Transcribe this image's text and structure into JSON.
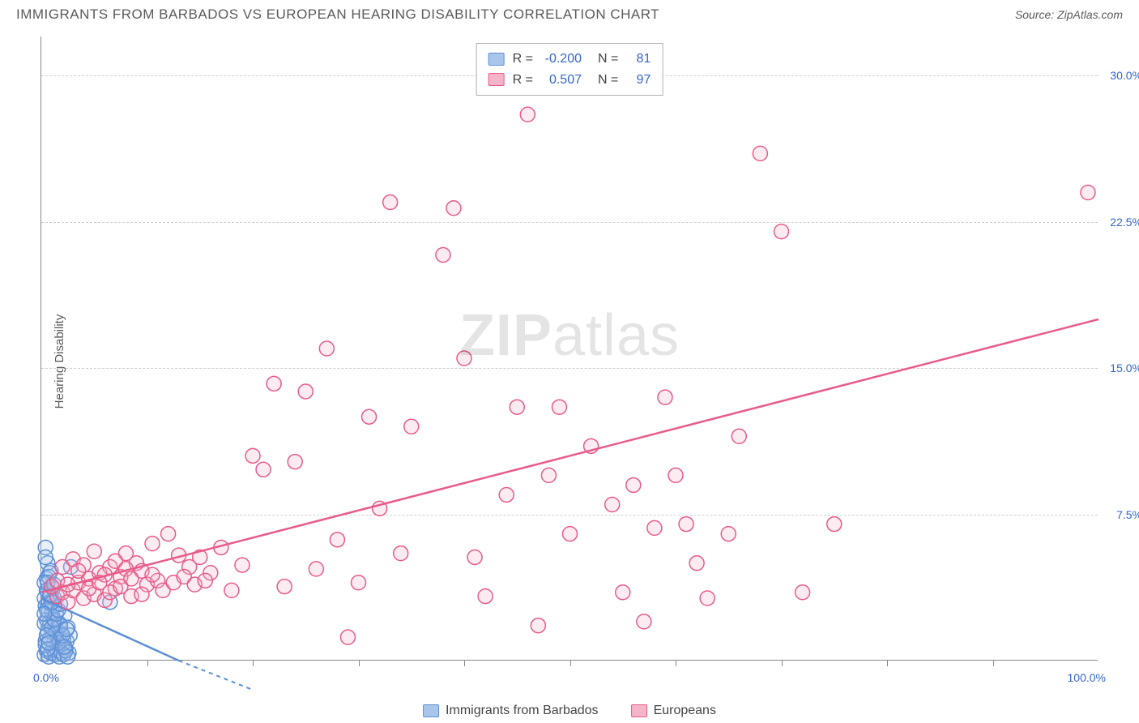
{
  "header": {
    "title": "IMMIGRANTS FROM BARBADOS VS EUROPEAN HEARING DISABILITY CORRELATION CHART",
    "source": "Source: ZipAtlas.com"
  },
  "chart": {
    "type": "scatter",
    "ylabel": "Hearing Disability",
    "xlim": [
      0,
      100
    ],
    "ylim": [
      0,
      32
    ],
    "x_axis_labels": [
      "0.0%",
      "100.0%"
    ],
    "y_ticks": [
      7.5,
      15.0,
      22.5,
      30.0
    ],
    "y_tick_labels": [
      "7.5%",
      "15.0%",
      "22.5%",
      "30.0%"
    ],
    "x_tick_positions": [
      10,
      20,
      30,
      40,
      50,
      60,
      70,
      80,
      90
    ],
    "background_color": "#ffffff",
    "grid_color": "#d0d0d0",
    "axis_color": "#888888",
    "marker_radius": 9,
    "watermark": "ZIPatlas",
    "series": [
      {
        "name": "Immigrants from Barbados",
        "color_stroke": "#5b8fd6",
        "color_fill": "#a9c5ec",
        "R": "-0.200",
        "N": "81",
        "trend": {
          "x1": 0,
          "y1": 3.2,
          "x2": 13,
          "y2": 0
        },
        "trend_dash": {
          "x1": 13,
          "y1": 0,
          "x2": 20,
          "y2": -1.5
        },
        "points": [
          [
            0.3,
            3.2
          ],
          [
            0.4,
            2.8
          ],
          [
            0.5,
            2.1
          ],
          [
            0.6,
            3.5
          ],
          [
            0.7,
            2.5
          ],
          [
            0.8,
            1.8
          ],
          [
            0.9,
            2.9
          ],
          [
            1.0,
            1.5
          ],
          [
            1.1,
            2.2
          ],
          [
            1.2,
            0.9
          ],
          [
            1.3,
            1.6
          ],
          [
            1.4,
            2.0
          ],
          [
            1.5,
            0.7
          ],
          [
            1.6,
            1.2
          ],
          [
            1.7,
            1.9
          ],
          [
            1.8,
            0.5
          ],
          [
            1.9,
            1.4
          ],
          [
            2.0,
            0.8
          ],
          [
            2.1,
            1.1
          ],
          [
            2.2,
            2.3
          ],
          [
            2.3,
            0.6
          ],
          [
            2.4,
            1.0
          ],
          [
            2.5,
            1.7
          ],
          [
            2.6,
            0.4
          ],
          [
            2.7,
            1.3
          ],
          [
            2.8,
            4.8
          ],
          [
            0.4,
            5.8
          ],
          [
            0.5,
            4.2
          ],
          [
            0.6,
            5.0
          ],
          [
            0.8,
            4.5
          ],
          [
            1.0,
            3.8
          ],
          [
            1.2,
            3.2
          ],
          [
            0.3,
            0.3
          ],
          [
            0.5,
            0.5
          ],
          [
            0.7,
            0.2
          ],
          [
            0.9,
            0.4
          ],
          [
            1.1,
            0.6
          ],
          [
            1.3,
            0.3
          ],
          [
            1.5,
            0.5
          ],
          [
            1.7,
            0.2
          ],
          [
            1.9,
            0.4
          ],
          [
            2.1,
            0.3
          ],
          [
            2.3,
            0.5
          ],
          [
            2.5,
            0.2
          ],
          [
            6.5,
            3.0
          ],
          [
            0.4,
            1.0
          ],
          [
            0.6,
            1.5
          ],
          [
            0.8,
            2.0
          ],
          [
            1.0,
            2.5
          ],
          [
            1.2,
            2.8
          ],
          [
            1.4,
            1.4
          ],
          [
            1.6,
            0.9
          ],
          [
            1.8,
            1.8
          ],
          [
            2.0,
            1.3
          ],
          [
            2.2,
            0.7
          ],
          [
            2.4,
            1.6
          ],
          [
            0.3,
            1.9
          ],
          [
            0.5,
            2.6
          ],
          [
            0.7,
            3.0
          ],
          [
            0.9,
            3.4
          ],
          [
            1.1,
            3.7
          ],
          [
            0.4,
            0.8
          ],
          [
            0.6,
            0.6
          ],
          [
            0.8,
            1.1
          ],
          [
            1.0,
            1.7
          ],
          [
            1.2,
            2.1
          ],
          [
            1.4,
            2.4
          ],
          [
            1.6,
            2.6
          ],
          [
            1.8,
            2.9
          ],
          [
            0.3,
            4.0
          ],
          [
            0.5,
            3.6
          ],
          [
            0.7,
            4.3
          ],
          [
            0.9,
            4.6
          ],
          [
            0.4,
            5.3
          ],
          [
            0.6,
            4.0
          ],
          [
            0.8,
            3.3
          ],
          [
            1.0,
            3.0
          ],
          [
            1.2,
            3.9
          ],
          [
            0.3,
            2.4
          ],
          [
            0.5,
            1.3
          ],
          [
            0.7,
            0.9
          ]
        ]
      },
      {
        "name": "Europeans",
        "color_stroke": "#e85a8a",
        "color_fill": "#f5b5c9",
        "R": "0.507",
        "N": "97",
        "trend": {
          "x1": 0,
          "y1": 3.5,
          "x2": 100,
          "y2": 17.5
        },
        "points": [
          [
            1.5,
            3.3
          ],
          [
            2.0,
            3.5
          ],
          [
            2.5,
            3.0
          ],
          [
            3.0,
            3.6
          ],
          [
            3.5,
            4.0
          ],
          [
            4.0,
            3.2
          ],
          [
            4.5,
            4.2
          ],
          [
            5.0,
            3.4
          ],
          [
            5.5,
            4.5
          ],
          [
            6.0,
            3.1
          ],
          [
            6.5,
            4.8
          ],
          [
            7.0,
            3.7
          ],
          [
            7.5,
            4.3
          ],
          [
            8.0,
            5.5
          ],
          [
            8.5,
            3.3
          ],
          [
            9.0,
            5.0
          ],
          [
            9.5,
            4.6
          ],
          [
            10.0,
            3.9
          ],
          [
            10.5,
            6.0
          ],
          [
            11.0,
            4.1
          ],
          [
            12.0,
            6.5
          ],
          [
            13.0,
            5.4
          ],
          [
            14.0,
            4.8
          ],
          [
            15.0,
            5.3
          ],
          [
            16.0,
            4.5
          ],
          [
            17.0,
            5.8
          ],
          [
            18.0,
            3.6
          ],
          [
            19.0,
            4.9
          ],
          [
            20.0,
            10.5
          ],
          [
            21.0,
            9.8
          ],
          [
            22.0,
            14.2
          ],
          [
            23.0,
            3.8
          ],
          [
            24.0,
            10.2
          ],
          [
            25.0,
            13.8
          ],
          [
            26.0,
            4.7
          ],
          [
            27.0,
            16.0
          ],
          [
            28.0,
            6.2
          ],
          [
            29.0,
            1.2
          ],
          [
            30.0,
            4.0
          ],
          [
            31.0,
            12.5
          ],
          [
            32.0,
            7.8
          ],
          [
            33.0,
            23.5
          ],
          [
            34.0,
            5.5
          ],
          [
            35.0,
            12.0
          ],
          [
            38.0,
            20.8
          ],
          [
            39.0,
            23.2
          ],
          [
            40.0,
            15.5
          ],
          [
            41.0,
            5.3
          ],
          [
            42.0,
            3.3
          ],
          [
            44.0,
            8.5
          ],
          [
            45.0,
            13.0
          ],
          [
            46.0,
            28.0
          ],
          [
            47.0,
            1.8
          ],
          [
            48.0,
            9.5
          ],
          [
            49.0,
            13.0
          ],
          [
            50.0,
            6.5
          ],
          [
            52.0,
            11.0
          ],
          [
            54.0,
            8.0
          ],
          [
            55.0,
            3.5
          ],
          [
            56.0,
            9.0
          ],
          [
            57.0,
            2.0
          ],
          [
            58.0,
            6.8
          ],
          [
            59.0,
            13.5
          ],
          [
            60.0,
            9.5
          ],
          [
            61.0,
            7.0
          ],
          [
            62.0,
            5.0
          ],
          [
            63.0,
            3.2
          ],
          [
            65.0,
            6.5
          ],
          [
            66.0,
            11.5
          ],
          [
            68.0,
            26.0
          ],
          [
            70.0,
            22.0
          ],
          [
            72.0,
            3.5
          ],
          [
            75.0,
            7.0
          ],
          [
            99.0,
            24.0
          ],
          [
            2.0,
            4.8
          ],
          [
            3.0,
            5.2
          ],
          [
            4.0,
            4.9
          ],
          [
            5.0,
            5.6
          ],
          [
            6.0,
            4.4
          ],
          [
            7.0,
            5.1
          ],
          [
            8.0,
            4.7
          ],
          [
            1.0,
            3.8
          ],
          [
            1.5,
            4.1
          ],
          [
            2.5,
            3.9
          ],
          [
            3.5,
            4.6
          ],
          [
            4.5,
            3.7
          ],
          [
            5.5,
            4.0
          ],
          [
            6.5,
            3.5
          ],
          [
            7.5,
            3.8
          ],
          [
            8.5,
            4.2
          ],
          [
            9.5,
            3.4
          ],
          [
            10.5,
            4.4
          ],
          [
            11.5,
            3.6
          ],
          [
            12.5,
            4.0
          ],
          [
            13.5,
            4.3
          ],
          [
            14.5,
            3.9
          ],
          [
            15.5,
            4.1
          ]
        ]
      }
    ]
  },
  "legend": {
    "items": [
      {
        "label": "Immigrants from Barbados",
        "stroke": "#5b8fd6",
        "fill": "#a9c5ec"
      },
      {
        "label": "Europeans",
        "stroke": "#e85a8a",
        "fill": "#f5b5c9"
      }
    ]
  }
}
